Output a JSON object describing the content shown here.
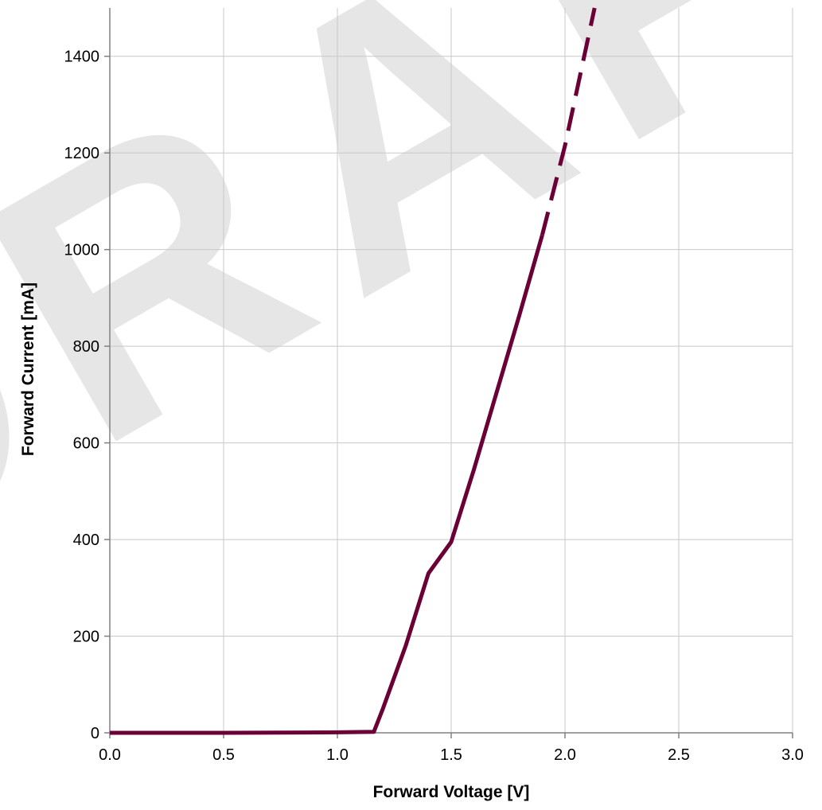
{
  "chart_data": {
    "type": "line",
    "title": "",
    "xlabel": "Forward Voltage [V]",
    "ylabel": "Forward Current [mA]",
    "xlim": [
      0,
      3.0
    ],
    "ylim": [
      0,
      1500
    ],
    "xticks": [
      0.0,
      0.5,
      1.0,
      1.5,
      2.0,
      2.5,
      3.0
    ],
    "xtick_labels": [
      "0.0",
      "0.5",
      "1.0",
      "1.5",
      "2.0",
      "2.5",
      "3.0"
    ],
    "yticks": [
      0,
      200,
      400,
      600,
      800,
      1000,
      1200,
      1400
    ],
    "ytick_labels": [
      "0",
      "200",
      "400",
      "600",
      "800",
      "1000",
      "1200",
      "1400"
    ],
    "grid": true,
    "legend": "none",
    "line_color": "#6b0036",
    "series": [
      {
        "style": "solid",
        "x": [
          0.0,
          0.5,
          1.0,
          1.16,
          1.2,
          1.3,
          1.4,
          1.5,
          1.6,
          1.7,
          1.8,
          1.9
        ],
        "y": [
          0,
          0,
          1,
          2,
          50,
          180,
          330,
          395,
          545,
          705,
          865,
          1030
        ]
      },
      {
        "style": "dashed",
        "x": [
          1.9,
          2.0,
          2.13
        ],
        "y": [
          1030,
          1215,
          1500
        ]
      }
    ],
    "watermark": "DRAFT"
  }
}
